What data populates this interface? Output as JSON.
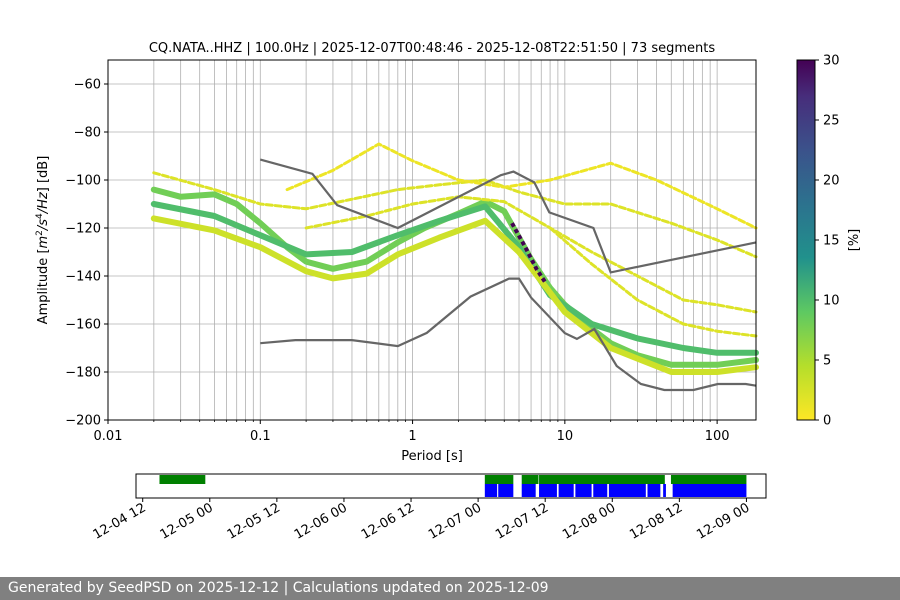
{
  "colors": {
    "grid": "#b0b0b0",
    "model_line": "#666666",
    "avail_green": "#008000",
    "avail_blue": "#0000ff",
    "footer_bg": "#808080"
  },
  "footer": {
    "text": "Generated by SeedPSD on 2025-12-12 | Calculations updated on 2025-12-09"
  },
  "chart_data": [
    {
      "id": "psd",
      "type": "heatmap",
      "title": "CQ.NATA..HHZ | 100.0Hz | 2025-12-07T00:48:46 - 2025-12-08T22:51:50 | 73 segments",
      "xlabel": "Period [s]",
      "ylabel_parts": [
        "Amplitude [",
        "m",
        "2",
        "/s",
        "4",
        "/Hz",
        "] [dB]"
      ],
      "xscale": "log",
      "xlim": [
        0.01,
        180
      ],
      "ylim": [
        -200,
        -50
      ],
      "x_ticks": [
        0.01,
        0.1,
        1,
        10,
        100
      ],
      "x_tick_labels": [
        "0.01",
        "0.1",
        "1",
        "10",
        "100"
      ],
      "y_ticks": [
        -200,
        -180,
        -160,
        -140,
        -120,
        -100,
        -80,
        -60
      ],
      "y_tick_labels": [
        "−200",
        "−180",
        "−160",
        "−140",
        "−120",
        "−100",
        "−80",
        "−60"
      ],
      "grid": true,
      "colorbar": {
        "label": "[%]",
        "range": [
          0,
          30
        ],
        "ticks": [
          0,
          5,
          10,
          15,
          20,
          25,
          30
        ],
        "tick_labels": [
          "0",
          "5",
          "10",
          "15",
          "20",
          "25",
          "30"
        ],
        "colormap": "viridis_r"
      },
      "density_bands": [
        {
          "name": "main-ridge",
          "pct": 8,
          "points": [
            [
              0.02,
              -104
            ],
            [
              0.03,
              -107
            ],
            [
              0.05,
              -106
            ],
            [
              0.07,
              -110
            ],
            [
              0.1,
              -118
            ],
            [
              0.15,
              -128
            ],
            [
              0.2,
              -134
            ],
            [
              0.3,
              -137
            ],
            [
              0.5,
              -134
            ],
            [
              0.8,
              -126
            ],
            [
              1.2,
              -120
            ],
            [
              2,
              -114
            ],
            [
              3,
              -109
            ],
            [
              4,
              -113
            ],
            [
              5,
              -124
            ],
            [
              6,
              -133
            ],
            [
              8,
              -145
            ],
            [
              10,
              -152
            ],
            [
              15,
              -162
            ],
            [
              20,
              -168
            ],
            [
              30,
              -173
            ],
            [
              50,
              -177
            ],
            [
              100,
              -177
            ],
            [
              180,
              -175
            ]
          ]
        },
        {
          "name": "upper-ridge",
          "pct": 10,
          "points": [
            [
              0.02,
              -110
            ],
            [
              0.05,
              -115
            ],
            [
              0.1,
              -123
            ],
            [
              0.2,
              -131
            ],
            [
              0.4,
              -130
            ],
            [
              0.8,
              -123
            ],
            [
              1.5,
              -117
            ],
            [
              3,
              -111
            ],
            [
              5,
              -128
            ],
            [
              8,
              -148
            ],
            [
              15,
              -160
            ],
            [
              30,
              -166
            ],
            [
              60,
              -170
            ],
            [
              100,
              -172
            ],
            [
              180,
              -172
            ]
          ]
        },
        {
          "name": "lower-ridge",
          "pct": 3,
          "points": [
            [
              0.02,
              -116
            ],
            [
              0.05,
              -121
            ],
            [
              0.1,
              -128
            ],
            [
              0.2,
              -138
            ],
            [
              0.3,
              -141
            ],
            [
              0.5,
              -139
            ],
            [
              0.8,
              -131
            ],
            [
              1.5,
              -124
            ],
            [
              3,
              -117
            ],
            [
              5,
              -130
            ],
            [
              10,
              -155
            ],
            [
              20,
              -170
            ],
            [
              50,
              -180
            ],
            [
              100,
              -180
            ],
            [
              180,
              -178
            ]
          ]
        },
        {
          "name": "noise-band-1",
          "pct": 2,
          "points": [
            [
              0.02,
              -97
            ],
            [
              0.05,
              -104
            ],
            [
              0.1,
              -110
            ],
            [
              0.2,
              -112
            ],
            [
              0.4,
              -108
            ],
            [
              0.8,
              -104
            ],
            [
              1.5,
              -102
            ],
            [
              3,
              -100
            ],
            [
              5,
              -105
            ],
            [
              10,
              -110
            ],
            [
              20,
              -110
            ],
            [
              50,
              -118
            ],
            [
              100,
              -125
            ],
            [
              180,
              -132
            ]
          ]
        },
        {
          "name": "noise-band-2",
          "pct": 1,
          "points": [
            [
              0.15,
              -104
            ],
            [
              0.3,
              -96
            ],
            [
              0.6,
              -85
            ],
            [
              1,
              -92
            ],
            [
              2,
              -100
            ],
            [
              4,
              -103
            ],
            [
              8,
              -100
            ],
            [
              20,
              -93
            ],
            [
              40,
              -100
            ],
            [
              100,
              -112
            ],
            [
              180,
              -120
            ]
          ]
        },
        {
          "name": "noise-band-3",
          "pct": 2,
          "points": [
            [
              0.2,
              -120
            ],
            [
              0.5,
              -115
            ],
            [
              1,
              -110
            ],
            [
              2,
              -107
            ],
            [
              4,
              -109
            ],
            [
              8,
              -120
            ],
            [
              15,
              -130
            ],
            [
              30,
              -140
            ],
            [
              60,
              -150
            ],
            [
              100,
              -152
            ],
            [
              180,
              -155
            ]
          ]
        },
        {
          "name": "noise-band-4",
          "pct": 2,
          "points": [
            [
              8,
              -120
            ],
            [
              15,
              -135
            ],
            [
              30,
              -150
            ],
            [
              60,
              -160
            ],
            [
              100,
              -163
            ],
            [
              180,
              -165
            ]
          ]
        }
      ],
      "spike": {
        "pct": 30,
        "points": [
          [
            4.5,
            -118
          ],
          [
            5.5,
            -128
          ],
          [
            6.5,
            -137
          ],
          [
            7.5,
            -143
          ]
        ]
      },
      "model_lines": [
        {
          "name": "NHNM",
          "points": [
            [
              0.1,
              -91.5
            ],
            [
              0.22,
              -97.4
            ],
            [
              0.32,
              -110.5
            ],
            [
              0.8,
              -120
            ],
            [
              3.8,
              -98
            ],
            [
              4.6,
              -96.5
            ],
            [
              6.3,
              -101
            ],
            [
              7.9,
              -113.5
            ],
            [
              15.4,
              -120
            ],
            [
              20,
              -138.5
            ],
            [
              354.8,
              -126
            ]
          ]
        },
        {
          "name": "NLNM",
          "points": [
            [
              0.1,
              -168
            ],
            [
              0.17,
              -166.7
            ],
            [
              0.4,
              -166.7
            ],
            [
              0.8,
              -169.2
            ],
            [
              1.24,
              -163.7
            ],
            [
              2.4,
              -148.6
            ],
            [
              4.3,
              -141.1
            ],
            [
              5,
              -141.1
            ],
            [
              6,
              -149
            ],
            [
              10,
              -163.8
            ],
            [
              12,
              -166.2
            ],
            [
              15.6,
              -162.1
            ],
            [
              21.9,
              -177.5
            ],
            [
              31.6,
              -185
            ],
            [
              45,
              -187.5
            ],
            [
              70,
              -187.5
            ],
            [
              101,
              -185
            ],
            [
              154,
              -185
            ],
            [
              180,
              -185.7
            ]
          ]
        }
      ]
    },
    {
      "id": "availability",
      "type": "bar",
      "x_tick_labels": [
        "12-04 12",
        "12-05 00",
        "12-05 12",
        "12-06 00",
        "12-06 12",
        "12-07 00",
        "12-07 12",
        "12-08 00",
        "12-08 12",
        "12-09 00"
      ],
      "x_tick_hours": [
        -24,
        -12,
        0,
        12,
        24,
        36,
        48,
        60,
        72,
        84
      ],
      "xlim_hours": [
        -25.2,
        87.5
      ],
      "green_segments_hours": [
        [
          -21,
          -12.8
        ],
        [
          37.2,
          42.3
        ],
        [
          43.8,
          46.8
        ],
        [
          46.9,
          69.4
        ],
        [
          70.5,
          84.0
        ]
      ],
      "blue_segments_hours": [
        [
          37.2,
          39.4
        ],
        [
          39.6,
          42.3
        ],
        [
          43.8,
          46.3
        ],
        [
          46.9,
          50.1
        ],
        [
          50.4,
          53.1
        ],
        [
          53.4,
          56.3
        ],
        [
          56.6,
          59.1
        ],
        [
          59.4,
          66.0
        ],
        [
          66.3,
          68.6
        ],
        [
          69.1,
          69.6
        ],
        [
          70.8,
          84.0
        ]
      ]
    }
  ]
}
